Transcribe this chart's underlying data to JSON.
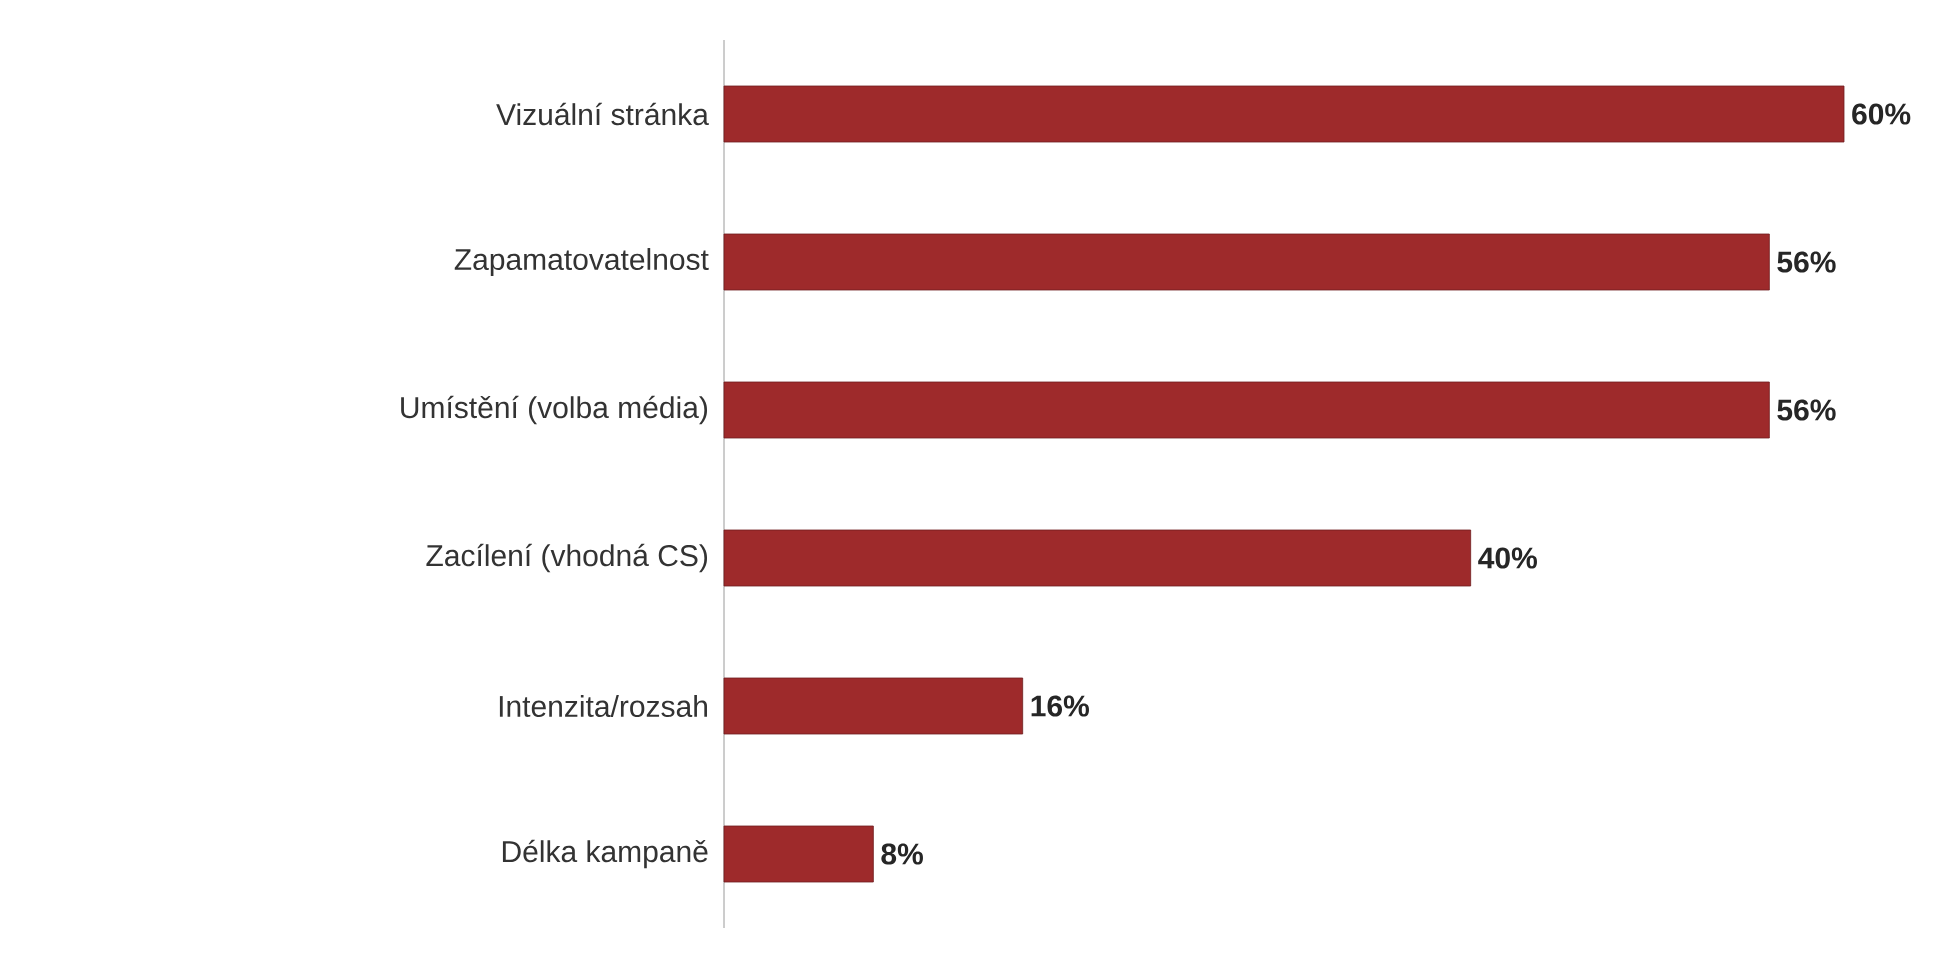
{
  "chart_data": {
    "type": "bar",
    "orientation": "horizontal",
    "categories": [
      "Vizuální stránka",
      "Zapamatovatelnost",
      "Umístění (volba média)",
      "Zacílení (vhodná CS)",
      "Intenzita/rozsah",
      "Délka kampaně"
    ],
    "values": [
      60,
      56,
      56,
      40,
      16,
      8
    ],
    "value_labels": [
      "60%",
      "56%",
      "56%",
      "40%",
      "16%",
      "8%"
    ],
    "color": "#9e2a2b"
  }
}
